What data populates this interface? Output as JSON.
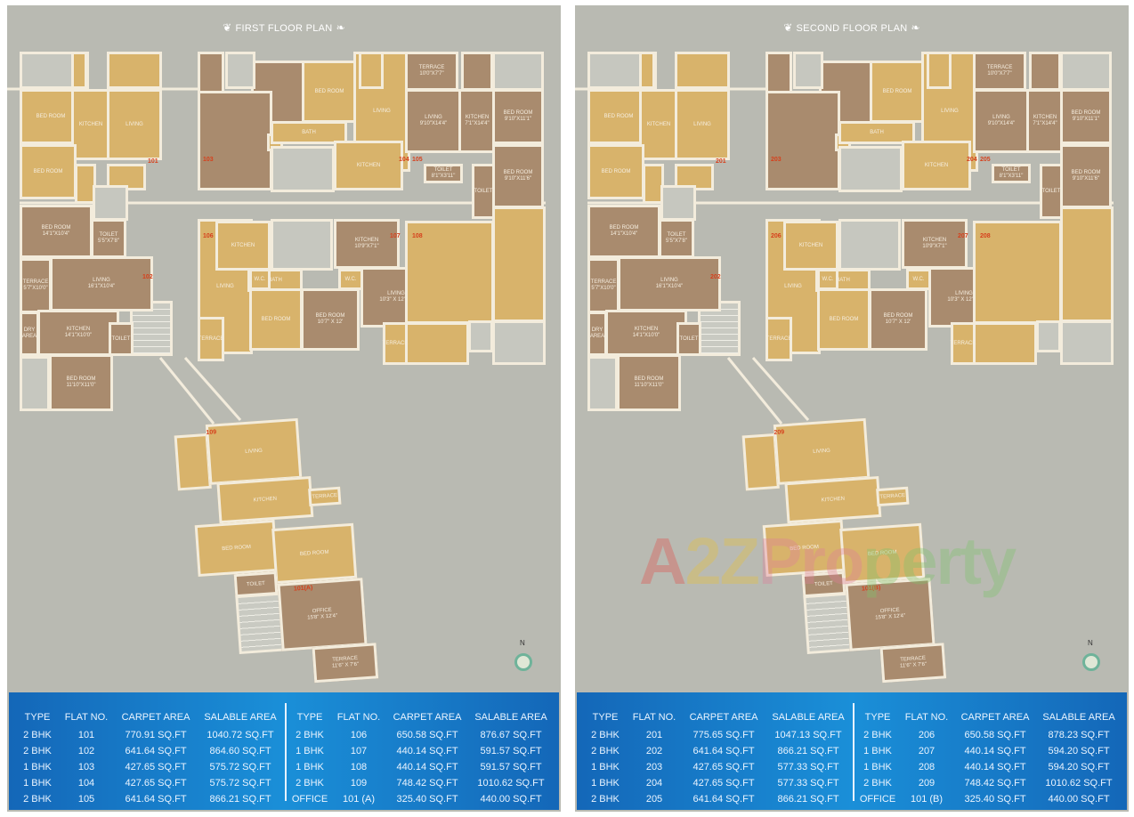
{
  "colors": {
    "tan": "#d8b36b",
    "brown": "#a98b6e",
    "void": "#c6c7bf",
    "background": "#b9bab2",
    "table_blue": "#1a8fd8",
    "flat_number": "#d6401c"
  },
  "room_labels": {
    "bed1": "BED ROOM\n14'1\"X10'4\"",
    "toilet1": "TOILET\n5'5\"X7'8\"",
    "terrace1": "TERRACE\n5'7\"X10'0\"",
    "living1": "LIVING\n16'1\"X10'4\"",
    "dry": "DRY AREA",
    "kitchen1": "KITCHEN\n14'1\"X10'0\"",
    "toilet": "TOILET",
    "bed2": "BED ROOM\n11'10\"X11'0\"",
    "bedroom": "BED ROOM",
    "kitchen": "KITCHEN",
    "living": "LIVING",
    "terrace": "TERRACE",
    "bath": "BATH",
    "wc": "W.C.",
    "terrace5": "TERRACE\n10'0\"X7'7\"",
    "living5": "LIVING\n9'10\"X14'4\"",
    "kitchen5": "KITCHEN\n7'1\"X14'4\"",
    "bed5a": "BED ROOM\n9'10\"X11'1\"",
    "bed5b": "BED ROOM\n9'10\"X11'6\"",
    "toilet5": "TOILET\n8'1\"X3'11\"",
    "kitchen7": "KITCHEN\n10'9\"X7'1\"",
    "living7": "LIVING\n10'3\" X 12'10\"",
    "bed7": "BED ROOM\n10'7\" X 12'",
    "office": "OFFICE\n15'8\" X 12'4\"",
    "terrace_o": "TERRACE\n11'6\" X 7'6\""
  },
  "compass_label": "N",
  "watermark": {
    "a": "A",
    "two": "2",
    "z": "Z",
    "p": "Pro",
    "r": "perty"
  },
  "panels": [
    {
      "title": "FIRST FLOOR PLAN",
      "flats": [
        "101",
        "102",
        "103",
        "104",
        "105",
        "106",
        "107",
        "108",
        "109",
        "101(A)"
      ],
      "headers": [
        "TYPE",
        "FLAT NO.",
        "CARPET AREA",
        "SALABLE AREA"
      ],
      "left_rows": [
        [
          "2 BHK",
          "101",
          "770.91 SQ.FT",
          "1040.72 SQ.FT"
        ],
        [
          "2 BHK",
          "102",
          "641.64 SQ.FT",
          "864.60 SQ.FT"
        ],
        [
          "1 BHK",
          "103",
          "427.65 SQ.FT",
          "575.72 SQ.FT"
        ],
        [
          "1 BHK",
          "104",
          "427.65 SQ.FT",
          "575.72 SQ.FT"
        ],
        [
          "2 BHK",
          "105",
          "641.64 SQ.FT",
          "866.21 SQ.FT"
        ]
      ],
      "right_rows": [
        [
          "2 BHK",
          "106",
          "650.58 SQ.FT",
          "876.67 SQ.FT"
        ],
        [
          "1 BHK",
          "107",
          "440.14 SQ.FT",
          "591.57 SQ.FT"
        ],
        [
          "1 BHK",
          "108",
          "440.14 SQ.FT",
          "591.57 SQ.FT"
        ],
        [
          "2 BHK",
          "109",
          "748.42 SQ.FT",
          "1010.62 SQ.FT"
        ],
        [
          "OFFICE",
          "101 (A)",
          "325.40 SQ.FT",
          "440.00 SQ.FT"
        ]
      ]
    },
    {
      "title": "SECOND FLOOR PLAN",
      "flats": [
        "201",
        "202",
        "203",
        "204",
        "205",
        "206",
        "207",
        "208",
        "209",
        "101(B)"
      ],
      "headers": [
        "TYPE",
        "FLAT NO.",
        "CARPET AREA",
        "SALABLE AREA"
      ],
      "left_rows": [
        [
          "2 BHK",
          "201",
          "775.65 SQ.FT",
          "1047.13 SQ.FT"
        ],
        [
          "2 BHK",
          "202",
          "641.64 SQ.FT",
          "866.21 SQ.FT"
        ],
        [
          "1 BHK",
          "203",
          "427.65 SQ.FT",
          "577.33 SQ.FT"
        ],
        [
          "1 BHK",
          "204",
          "427.65 SQ.FT",
          "577.33 SQ.FT"
        ],
        [
          "2 BHK",
          "205",
          "641.64 SQ.FT",
          "866.21 SQ.FT"
        ]
      ],
      "right_rows": [
        [
          "2 BHK",
          "206",
          "650.58 SQ.FT",
          "878.23 SQ.FT"
        ],
        [
          "1 BHK",
          "207",
          "440.14 SQ.FT",
          "594.20 SQ.FT"
        ],
        [
          "1 BHK",
          "208",
          "440.14 SQ.FT",
          "594.20 SQ.FT"
        ],
        [
          "2 BHK",
          "209",
          "748.42 SQ.FT",
          "1010.62 SQ.FT"
        ],
        [
          "OFFICE",
          "101 (B)",
          "325.40 SQ.FT",
          "440.00 SQ.FT"
        ]
      ]
    }
  ]
}
